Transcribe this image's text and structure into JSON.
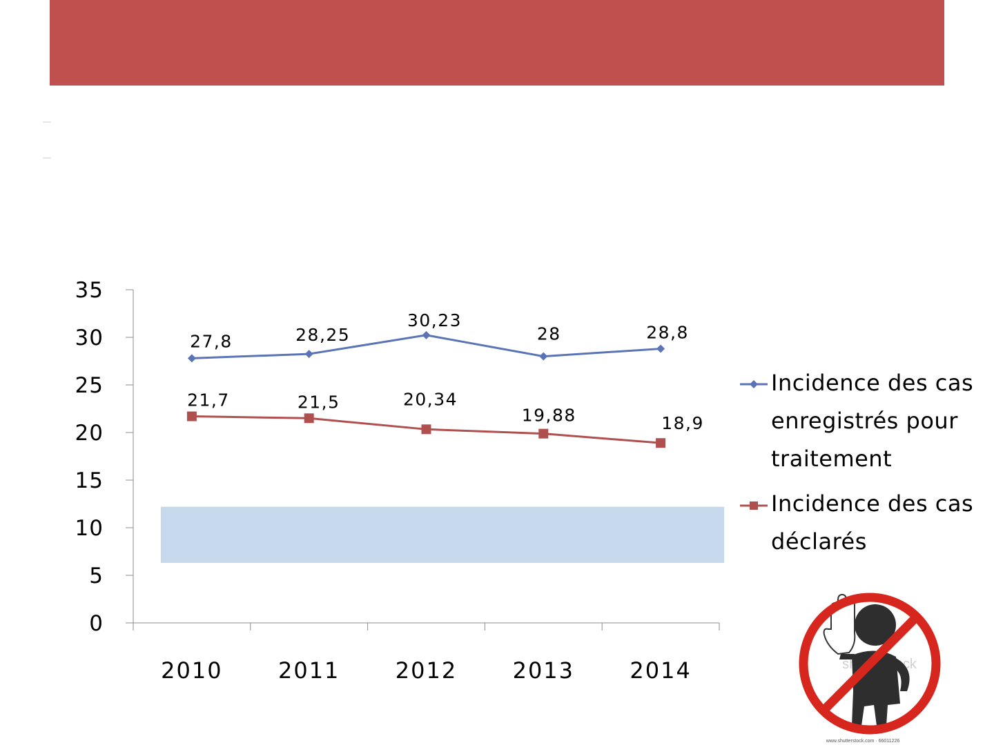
{
  "chart_data": {
    "type": "line",
    "categories": [
      "2010",
      "2011",
      "2012",
      "2013",
      "2014"
    ],
    "series": [
      {
        "name": "Incidence des cas enregistrés pour traitement",
        "values": [
          27.8,
          28.25,
          30.23,
          28,
          28.8
        ],
        "labels": [
          "27,8",
          "28,25",
          "30,23",
          "28",
          "28,8"
        ],
        "color": "#5b74b6",
        "marker": "diamond"
      },
      {
        "name": "Incidence des cas déclarés",
        "values": [
          21.7,
          21.5,
          20.34,
          19.88,
          18.9
        ],
        "labels": [
          "21,7",
          "21,5",
          "20,34",
          "19,88",
          "18,9"
        ],
        "color": "#b0504e",
        "marker": "square"
      }
    ],
    "yticks": [
      "0",
      "5",
      "10",
      "15",
      "20",
      "25",
      "30",
      "35"
    ],
    "ylim": [
      0,
      35
    ],
    "legend_position": "right",
    "highlight_band": {
      "from": 6.3,
      "to": 12.2,
      "color": "#c6d9ec"
    },
    "grid": false
  },
  "theme": {
    "title_bar_color": "#c0504d"
  },
  "watermark": {
    "text": "shutterstock",
    "icon": "stop-person-icon"
  }
}
